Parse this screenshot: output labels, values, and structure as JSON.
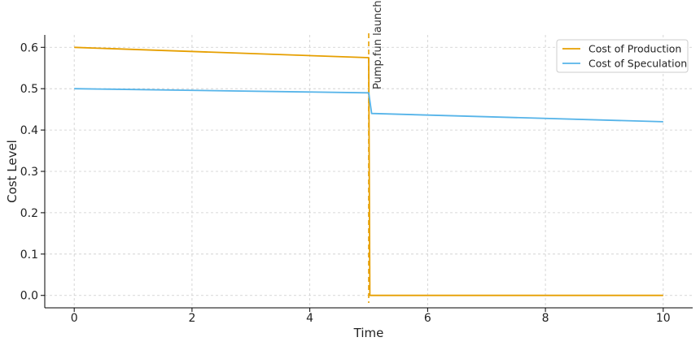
{
  "chart_data": {
    "type": "line",
    "title": "",
    "xlabel": "Time",
    "ylabel": "Cost Level",
    "xlim": [
      -0.5,
      10.5
    ],
    "ylim": [
      -0.03,
      0.63
    ],
    "xticks": [
      0,
      2,
      4,
      6,
      8,
      10
    ],
    "yticks": [
      0.0,
      0.1,
      0.2,
      0.3,
      0.4,
      0.5,
      0.6
    ],
    "xtick_labels": [
      "0",
      "2",
      "4",
      "6",
      "8",
      "10"
    ],
    "ytick_labels": [
      "0.0",
      "0.1",
      "0.2",
      "0.3",
      "0.4",
      "0.5",
      "0.6"
    ],
    "grid": true,
    "legend_position": "top-right",
    "series": [
      {
        "name": "Cost of Production",
        "color": "#E69F00",
        "x": [
          0,
          5,
          5.02,
          10
        ],
        "y": [
          0.6,
          0.575,
          0.0,
          0.0
        ]
      },
      {
        "name": "Cost of Speculation",
        "color": "#56B4E9",
        "x": [
          0,
          5,
          5.05,
          10
        ],
        "y": [
          0.5,
          0.49,
          0.44,
          0.42
        ]
      }
    ],
    "vline": {
      "x": 5,
      "label": "Pump.fun launch",
      "color": "#E69F00",
      "style": "dashed"
    }
  }
}
